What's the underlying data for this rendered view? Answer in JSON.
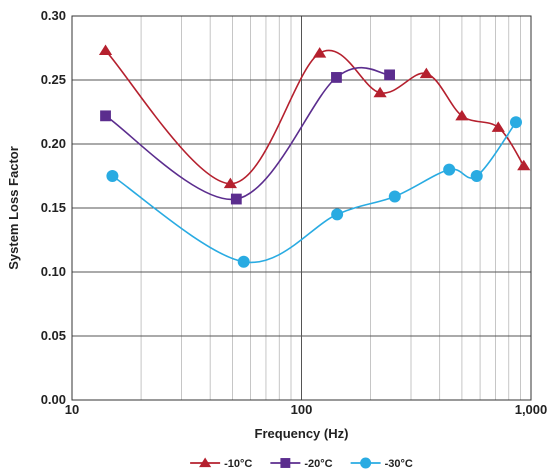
{
  "chart_data": {
    "type": "line",
    "x_scale": "log",
    "xlim": [
      10,
      1000
    ],
    "ylim": [
      0.0,
      0.3
    ],
    "xlabel": "Frequency (Hz)",
    "ylabel": "System Loss Factor",
    "x_ticks": [
      {
        "value": 10,
        "label": "10"
      },
      {
        "value": 100,
        "label": "100"
      },
      {
        "value": 1000,
        "label": "1,000"
      }
    ],
    "y_ticks": [
      {
        "value": 0.0,
        "label": "0.00"
      },
      {
        "value": 0.05,
        "label": "0.05"
      },
      {
        "value": 0.1,
        "label": "0.10"
      },
      {
        "value": 0.15,
        "label": "0.15"
      },
      {
        "value": 0.2,
        "label": "0.20"
      },
      {
        "value": 0.25,
        "label": "0.25"
      },
      {
        "value": 0.3,
        "label": "0.30"
      }
    ],
    "grid": true,
    "legend_position": "bottom",
    "series": [
      {
        "name": "-10°C",
        "color": "#b5202e",
        "marker": "triangle",
        "points": [
          {
            "x": 14,
            "y": 0.273
          },
          {
            "x": 49,
            "y": 0.169
          },
          {
            "x": 120,
            "y": 0.271
          },
          {
            "x": 220,
            "y": 0.24
          },
          {
            "x": 350,
            "y": 0.255
          },
          {
            "x": 500,
            "y": 0.222
          },
          {
            "x": 720,
            "y": 0.213
          },
          {
            "x": 930,
            "y": 0.183
          }
        ]
      },
      {
        "name": "-20°C",
        "color": "#5b2d8e",
        "marker": "square",
        "points": [
          {
            "x": 14,
            "y": 0.222
          },
          {
            "x": 52,
            "y": 0.157
          },
          {
            "x": 142,
            "y": 0.252
          },
          {
            "x": 242,
            "y": 0.254
          }
        ]
      },
      {
        "name": "-30°C",
        "color": "#29abe2",
        "marker": "circle",
        "points": [
          {
            "x": 15,
            "y": 0.175
          },
          {
            "x": 56,
            "y": 0.108
          },
          {
            "x": 143,
            "y": 0.145
          },
          {
            "x": 255,
            "y": 0.159
          },
          {
            "x": 440,
            "y": 0.18
          },
          {
            "x": 580,
            "y": 0.175
          },
          {
            "x": 860,
            "y": 0.217
          }
        ]
      }
    ]
  }
}
